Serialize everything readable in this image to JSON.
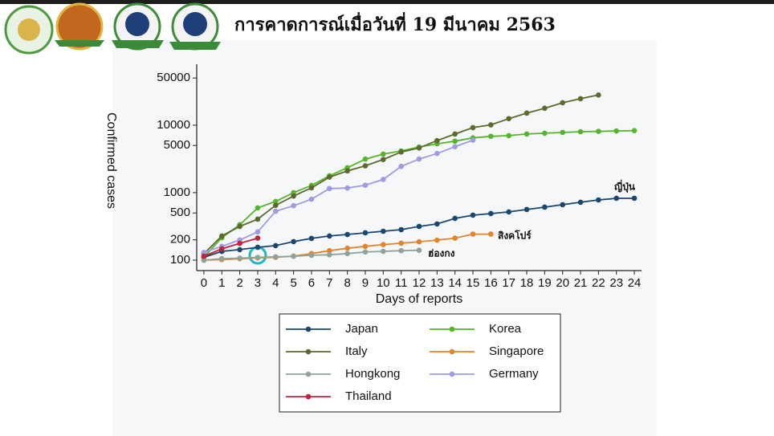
{
  "chart_data": {
    "type": "line",
    "title": "การคาดการณ์เมื่อวันที่ 19 มีนาคม 2563",
    "xlabel": "Days of reports",
    "ylabel": "Confirmed cases",
    "log_y": true,
    "x": [
      0,
      1,
      2,
      3,
      4,
      5,
      6,
      7,
      8,
      9,
      10,
      11,
      12,
      13,
      14,
      15,
      16,
      17,
      18,
      19,
      20,
      21,
      22,
      23,
      24
    ],
    "xlim": [
      -0.4,
      24.4
    ],
    "xticks": [
      0,
      1,
      2,
      3,
      4,
      5,
      6,
      7,
      8,
      9,
      10,
      11,
      12,
      13,
      14,
      15,
      16,
      17,
      18,
      19,
      20,
      21,
      22,
      23,
      24
    ],
    "ylim": [
      70,
      80000
    ],
    "yticks": [
      100,
      200,
      500,
      1000,
      5000,
      10000,
      50000
    ],
    "legend": "bottom",
    "series": [
      {
        "name": "Japan",
        "color": "#1a476f",
        "values": [
          110,
          135,
          143,
          155,
          164,
          188,
          210,
          228,
          240,
          254,
          268,
          283,
          316,
          344,
          416,
          464,
          490,
          518,
          563,
          610,
          663,
          720,
          780,
          825,
          825
        ]
      },
      {
        "name": "Korea",
        "color": "#55b52c",
        "values": [
          110,
          215,
          335,
          595,
          740,
          1000,
          1280,
          1780,
          2340,
          3140,
          3730,
          4150,
          4750,
          5300,
          5800,
          6480,
          6840,
          7000,
          7400,
          7600,
          7800,
          8000,
          8100,
          8200,
          8300
        ]
      },
      {
        "name": "Italy",
        "color": "#5b6b2c",
        "values": [
          124,
          228,
          316,
          405,
          650,
          890,
          1180,
          1700,
          2100,
          2500,
          3100,
          4000,
          4600,
          5900,
          7400,
          9200,
          10100,
          12500,
          15100,
          17800,
          21500,
          24700,
          28000,
          null,
          null
        ]
      },
      {
        "name": "Singapore",
        "color": "#e3832b",
        "values": [
          100,
          102,
          105,
          108,
          110,
          115,
          125,
          138,
          150,
          160,
          170,
          178,
          187,
          198,
          212,
          243,
          243,
          null,
          null,
          null,
          null,
          null,
          null,
          null,
          null
        ]
      },
      {
        "name": "Hongkong",
        "color": "#8fa39a",
        "values": [
          100,
          105,
          107,
          110,
          112,
          114,
          118,
          120,
          125,
          132,
          135,
          138,
          140,
          null,
          null,
          null,
          null,
          null,
          null,
          null,
          null,
          null,
          null,
          null,
          null
        ]
      },
      {
        "name": "Germany",
        "color": "#9d9ce2",
        "values": [
          130,
          160,
          199,
          262,
          530,
          640,
          800,
          1150,
          1170,
          1290,
          1570,
          2450,
          3150,
          3800,
          4800,
          6000,
          null,
          null,
          null,
          null,
          null,
          null,
          null,
          null,
          null
        ]
      },
      {
        "name": "Thailand",
        "color": "#c0243b",
        "values": [
          114,
          147,
          177,
          212,
          null,
          null,
          null,
          null,
          null,
          null,
          null,
          null,
          null,
          null,
          null,
          null,
          null,
          null,
          null,
          null,
          null,
          null,
          null,
          null,
          null
        ]
      }
    ],
    "annotations": [
      "ญี่ปุ่น",
      "สิงคโปร์",
      "ฮ่องกง"
    ]
  }
}
